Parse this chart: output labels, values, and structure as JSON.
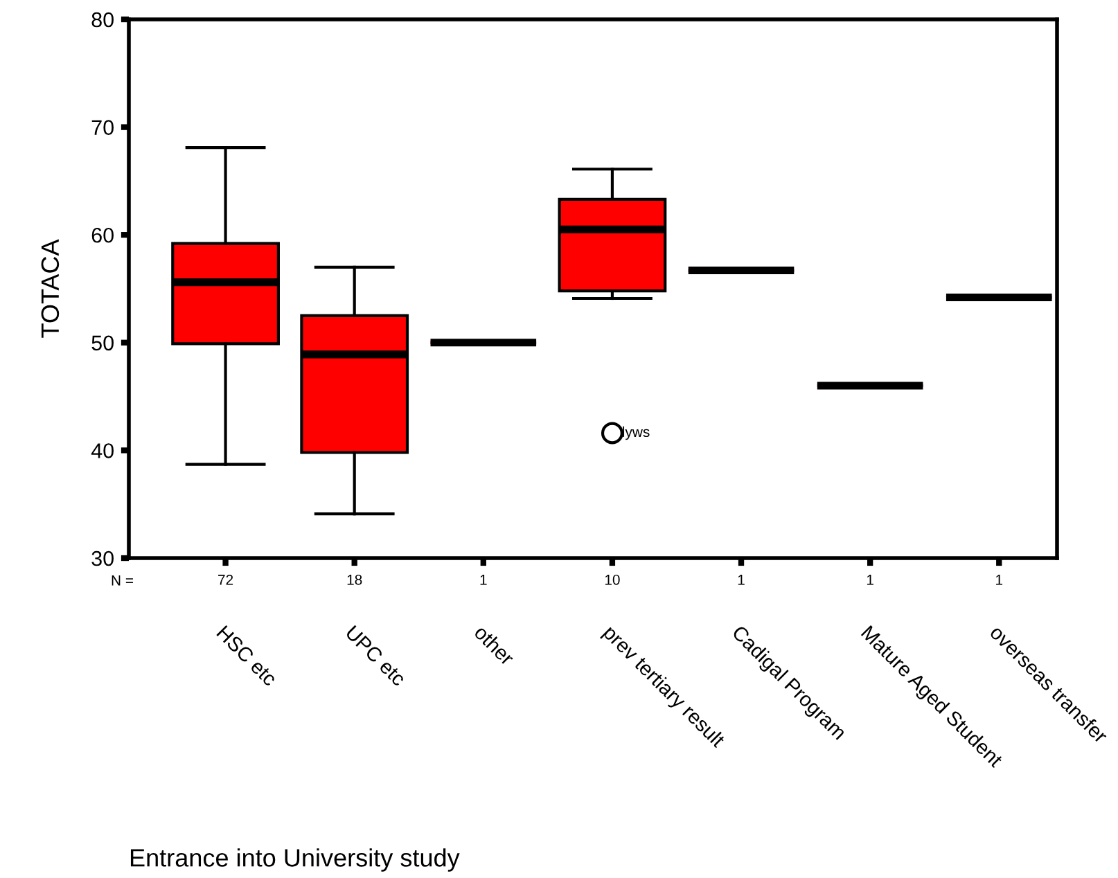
{
  "chart_data": {
    "type": "box",
    "xlabel": "Entrance into University study",
    "ylabel": "TOTACA",
    "categories": [
      "HSC etc",
      "UPC etc",
      "other",
      "prev tertiary result",
      "Cadigal Program",
      "Mature Aged Student",
      "overseas transfer"
    ],
    "boxes": [
      {
        "low": 38.7,
        "q1": 49.9,
        "median": 55.6,
        "q3": 59.2,
        "high": 68.1
      },
      {
        "low": 34.1,
        "q1": 39.8,
        "median": 48.9,
        "q3": 52.5,
        "high": 57.0
      },
      {
        "low": 50.0,
        "q1": 50.0,
        "median": 50.0,
        "q3": 50.0,
        "high": 50.0
      },
      {
        "low": 54.1,
        "q1": 54.8,
        "median": 60.5,
        "q3": 63.3,
        "high": 66.1,
        "outliers": [
          41.6
        ]
      },
      {
        "low": 56.7,
        "q1": 56.7,
        "median": 56.7,
        "q3": 56.7,
        "high": 56.7
      },
      {
        "low": 46.0,
        "q1": 46.0,
        "median": 46.0,
        "q3": 46.0,
        "high": 46.0
      },
      {
        "low": 54.2,
        "q1": 54.2,
        "median": 54.2,
        "q3": 54.2,
        "high": 54.2
      }
    ],
    "color": "#ff0000",
    "ylim": [
      30,
      80
    ],
    "yticks": [
      30,
      40,
      50,
      60,
      70,
      80
    ],
    "grid": false,
    "annotations": [
      "N =",
      "72",
      "18",
      "1",
      "10",
      "1",
      "1",
      "1",
      "lyws"
    ]
  }
}
